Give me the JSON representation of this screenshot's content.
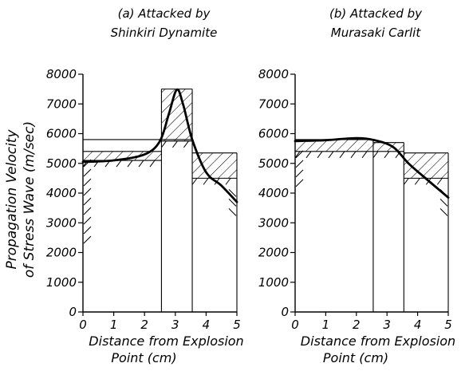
{
  "ylabel_lines": [
    "Propagation Velocity",
    "of Stress Wave (m/sec)"
  ],
  "chart_data": [
    {
      "type": "line",
      "title_lines": [
        "(a)  Attacked by",
        "Shinkiri Dynamite"
      ],
      "xlabel_lines": [
        "Distance from Explosion",
        "Point  (cm)"
      ],
      "xlim": [
        0,
        5
      ],
      "ylim": [
        0,
        8000
      ],
      "x_ticks": [
        0,
        1,
        2,
        3,
        4,
        5
      ],
      "y_ticks": [
        0,
        1000,
        2000,
        3000,
        4000,
        5000,
        6000,
        7000,
        8000
      ],
      "vlines": [
        2.55,
        3.55
      ],
      "bars": [
        {
          "x0": 0,
          "x1": 2.55,
          "low": 5100,
          "high": 5400
        },
        {
          "x0": 2.55,
          "x1": 3.55,
          "low": 5750,
          "high": 7500
        },
        {
          "x0": 3.55,
          "x1": 5,
          "low": 4500,
          "high": 5350
        }
      ],
      "extra_hlines": [
        {
          "x0": 0,
          "x1": 3.55,
          "y": 5800
        }
      ],
      "curve": [
        [
          0,
          5050
        ],
        [
          1,
          5100
        ],
        [
          2,
          5300
        ],
        [
          2.5,
          5750
        ],
        [
          2.8,
          6700
        ],
        [
          3.05,
          7480
        ],
        [
          3.25,
          7000
        ],
        [
          3.55,
          5800
        ],
        [
          4,
          4700
        ],
        [
          4.5,
          4250
        ],
        [
          5,
          3700
        ]
      ]
    },
    {
      "type": "line",
      "title_lines": [
        "(b)  Attacked by",
        "Murasaki Carlit"
      ],
      "xlabel_lines": [
        "Distance from Explosion",
        "Point  (cm)"
      ],
      "xlim": [
        0,
        5
      ],
      "ylim": [
        0,
        8000
      ],
      "x_ticks": [
        0,
        1,
        2,
        3,
        4,
        5
      ],
      "y_ticks": [
        0,
        1000,
        2000,
        3000,
        4000,
        5000,
        6000,
        7000,
        8000
      ],
      "vlines": [
        2.55,
        3.55
      ],
      "bars": [
        {
          "x0": 0,
          "x1": 2.55,
          "low": 5400,
          "high": 5800
        },
        {
          "x0": 2.55,
          "x1": 3.55,
          "low": 5400,
          "high": 5700
        },
        {
          "x0": 3.55,
          "x1": 5,
          "low": 4500,
          "high": 5350
        }
      ],
      "extra_hlines": [],
      "curve": [
        [
          0,
          5750
        ],
        [
          1,
          5780
        ],
        [
          2,
          5850
        ],
        [
          2.6,
          5780
        ],
        [
          3.2,
          5550
        ],
        [
          3.7,
          5000
        ],
        [
          4.2,
          4550
        ],
        [
          5,
          3850
        ]
      ]
    }
  ]
}
